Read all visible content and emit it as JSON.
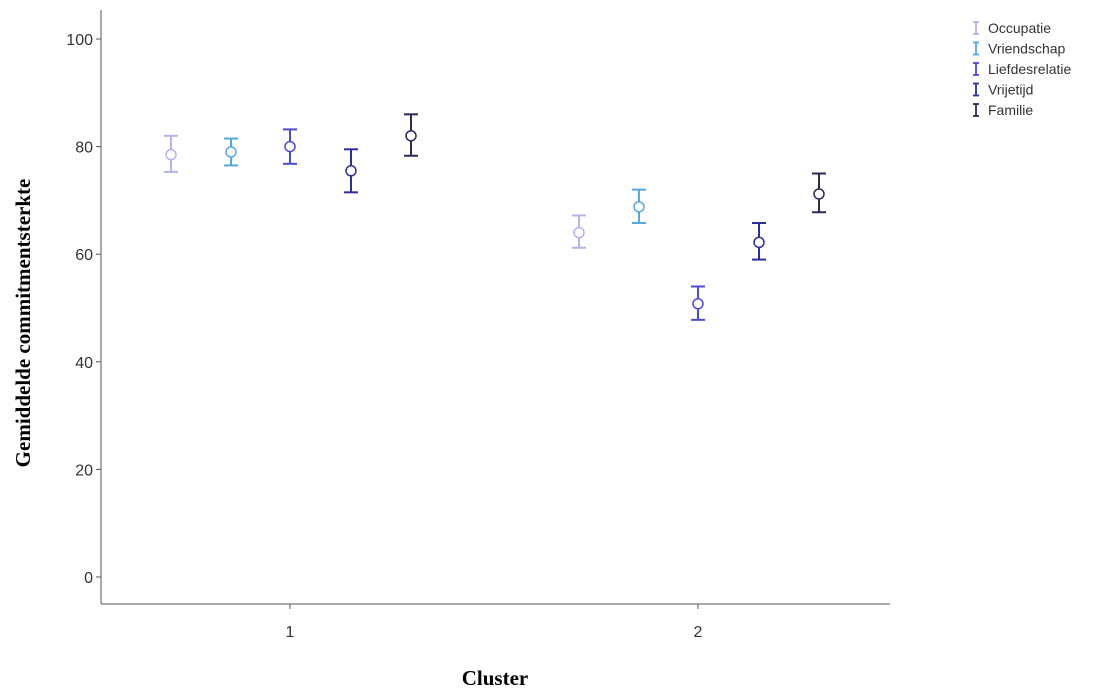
{
  "chart_data": {
    "type": "errorbar",
    "xlabel": "Cluster",
    "ylabel": "Gemiddelde commitmentsterkte",
    "categories": [
      "1",
      "2"
    ],
    "ylim": [
      0,
      100
    ],
    "yticks": [
      0,
      20,
      40,
      60,
      80,
      100
    ],
    "grid": false,
    "legend_position": "top-right",
    "series": [
      {
        "name": "Occupatie",
        "color": "#b3b3ee",
        "values": [
          78.5,
          64.0
        ],
        "lower": [
          75.3,
          61.2
        ],
        "upper": [
          82.0,
          67.2
        ]
      },
      {
        "name": "Vriendschap",
        "color": "#57a8e0",
        "values": [
          79.0,
          68.8
        ],
        "lower": [
          76.5,
          65.8
        ],
        "upper": [
          81.5,
          72.0
        ]
      },
      {
        "name": "Liefdesrelatie",
        "color": "#4b4bd6",
        "values": [
          80.0,
          50.8
        ],
        "lower": [
          76.8,
          47.8
        ],
        "upper": [
          83.2,
          54.0
        ]
      },
      {
        "name": "Vrijetijd",
        "color": "#2e2e9e",
        "values": [
          75.5,
          62.2
        ],
        "lower": [
          71.5,
          59.0
        ],
        "upper": [
          79.5,
          65.8
        ]
      },
      {
        "name": "Familie",
        "color": "#2a2a55",
        "values": [
          82.0,
          71.2
        ],
        "lower": [
          78.3,
          67.8
        ],
        "upper": [
          86.0,
          75.0
        ]
      }
    ]
  }
}
